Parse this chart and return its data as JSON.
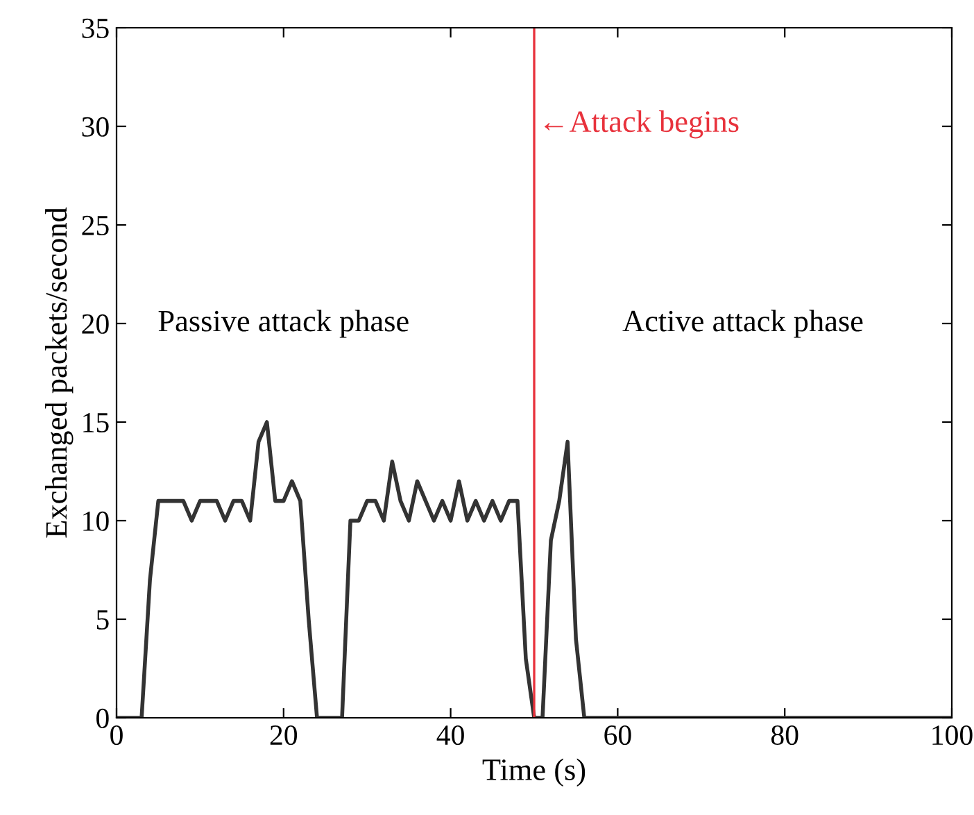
{
  "chart_data": {
    "type": "line",
    "xlabel": "Time (s)",
    "ylabel": "Exchanged packets/second",
    "x": [
      0,
      1,
      2,
      3,
      4,
      5,
      6,
      7,
      8,
      9,
      10,
      11,
      12,
      13,
      14,
      15,
      16,
      17,
      18,
      19,
      20,
      21,
      22,
      23,
      24,
      25,
      26,
      27,
      28,
      29,
      30,
      31,
      32,
      33,
      34,
      35,
      36,
      37,
      38,
      39,
      40,
      41,
      42,
      43,
      44,
      45,
      46,
      47,
      48,
      49,
      50,
      51,
      52,
      53,
      54,
      55,
      56,
      100
    ],
    "series": [
      {
        "color": "#333333",
        "values": [
          0,
          0,
          0,
          0,
          7,
          11,
          11,
          11,
          11,
          10,
          11,
          11,
          11,
          10,
          11,
          11,
          10,
          14,
          15,
          11,
          11,
          12,
          11,
          5,
          0,
          0,
          0,
          0,
          10,
          10,
          11,
          11,
          10,
          13,
          11,
          10,
          12,
          11,
          10,
          11,
          10,
          12,
          10,
          11,
          10,
          11,
          10,
          11,
          11,
          3,
          0,
          0,
          9,
          11,
          14,
          4,
          0,
          0
        ]
      }
    ],
    "xlim": [
      0,
      100
    ],
    "ylim": [
      0,
      35
    ],
    "xticks": [
      0,
      20,
      40,
      60,
      80,
      100
    ],
    "yticks": [
      0,
      5,
      10,
      15,
      20,
      25,
      30,
      35
    ],
    "grid": false,
    "legend": false,
    "marker": "none",
    "line_style": "solid",
    "ref_lines": [
      {
        "axis": "x",
        "value": 50,
        "label": "←Attack begins",
        "color": "#e8323c"
      }
    ],
    "annotations": [
      "Passive attack phase",
      "Active attack phase"
    ]
  }
}
